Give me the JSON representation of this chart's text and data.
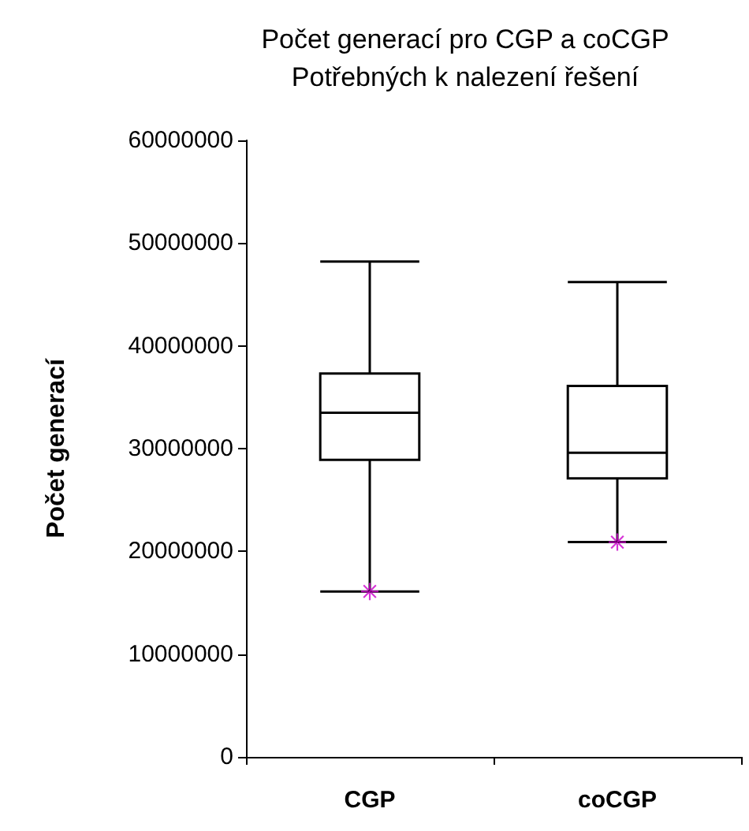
{
  "chart_data": {
    "type": "box",
    "title": "Počet generací pro CGP a coCGP\nPotřebných k nalezení řešení",
    "ylabel": "Počet generací",
    "categories": [
      "CGP",
      "coCGP"
    ],
    "series": [
      {
        "type": "box",
        "color": "#000000",
        "boxes": [
          {
            "low": 16100000,
            "q1": 28900000,
            "median": 33500000,
            "q3": 37300000,
            "high": 48200000
          },
          {
            "low": 20900000,
            "q1": 27100000,
            "median": 29600000,
            "q3": 36100000,
            "high": 46200000
          }
        ]
      },
      {
        "type": "scatter",
        "color": "#cc00cc",
        "x": [
          "CGP",
          "coCGP"
        ],
        "values": [
          16100000,
          20900000
        ]
      }
    ],
    "marker": "cross",
    "ylim": [
      0,
      60000000
    ],
    "yticks": [
      0,
      10000000,
      20000000,
      30000000,
      40000000,
      50000000,
      60000000
    ],
    "grid": false
  }
}
